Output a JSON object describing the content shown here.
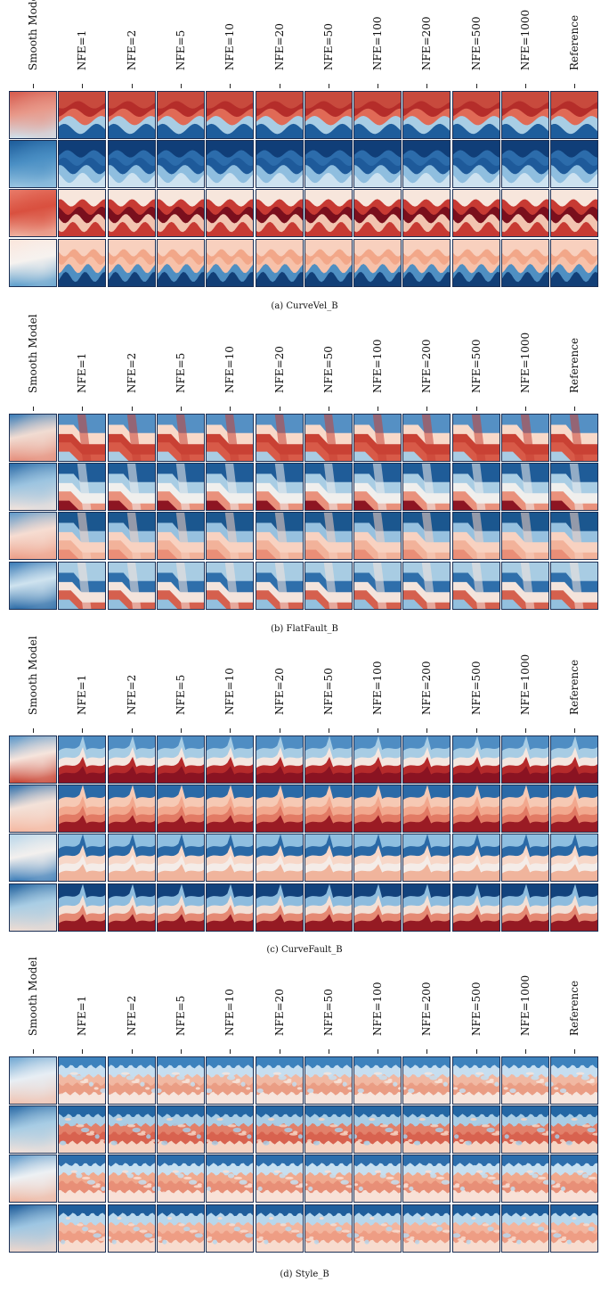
{
  "column_labels": [
    "Smooth Model",
    "NFE=1",
    "NFE=2",
    "NFE=5",
    "NFE=10",
    "NFE=20",
    "NFE=50",
    "NFE=100",
    "NFE=200",
    "NFE=500",
    "NFE=1000",
    "Reference"
  ],
  "panels": [
    {
      "caption": "(a) CurveVel_B",
      "style": "curve",
      "rows": [
        {
          "smooth": [
            "#d65a4d",
            "#e8998a",
            "#cfe3ef"
          ],
          "bands": [
            "#c84a3d",
            "#b52d2a",
            "#e06a56",
            "#a8cde4",
            "#1e5d9c"
          ]
        },
        {
          "smooth": [
            "#1d5c9a",
            "#4a8fc4",
            "#9cc7e2"
          ],
          "bands": [
            "#103e78",
            "#2c6cab",
            "#1e5a9a",
            "#8fbedf",
            "#cde2f0"
          ]
        },
        {
          "smooth": [
            "#e87a68",
            "#d9503f",
            "#f0b4a2"
          ],
          "bands": [
            "#f7e6dc",
            "#c73a33",
            "#7a0f1d",
            "#f2c4b0",
            "#c73a33"
          ]
        },
        {
          "smooth": [
            "#fbe6dc",
            "#f6f2ef",
            "#5a9dcc"
          ],
          "bands": [
            "#f8d0be",
            "#f2a789",
            "#f7c1a9",
            "#4f8fc2",
            "#123f77"
          ]
        }
      ]
    },
    {
      "caption": "(b) FlatFault_B",
      "style": "flat",
      "rows": [
        {
          "smooth": [
            "#3a7db8",
            "#f1dcd2",
            "#e58c79"
          ],
          "bands": [
            "#5590c4",
            "#f8d9c9",
            "#c94134",
            "#d85a48",
            "#a9cce3"
          ]
        },
        {
          "smooth": [
            "#2b6aa6",
            "#9cc4e0",
            "#f5e4dc"
          ],
          "bands": [
            "#1f5c98",
            "#a9cde4",
            "#f0efed",
            "#e9917c",
            "#8d1522"
          ]
        },
        {
          "smooth": [
            "#5e99c9",
            "#f6ddd2",
            "#ec9d86"
          ],
          "bands": [
            "#1b578f",
            "#97c1df",
            "#f8d2c1",
            "#f2b29a",
            "#ea8e77"
          ]
        },
        {
          "smooth": [
            "#3b7cb7",
            "#cfe3ef",
            "#2a6aa6"
          ],
          "bands": [
            "#a8cce3",
            "#2f6fab",
            "#f4e4dc",
            "#d5604e",
            "#93c0de"
          ]
        }
      ]
    },
    {
      "caption": "(c) CurveFault_B",
      "style": "fault",
      "rows": [
        {
          "smooth": [
            "#5a97c9",
            "#f6e5dd",
            "#c8402f"
          ],
          "bands": [
            "#4f8dc3",
            "#a7cce4",
            "#f4e6df",
            "#b52a2b",
            "#8a1322"
          ]
        },
        {
          "smooth": [
            "#2f6fab",
            "#f3e2d9",
            "#f4b7a0"
          ],
          "bands": [
            "#2b6aa7",
            "#f6c9b4",
            "#f2a88e",
            "#e27b65",
            "#9a1b24"
          ]
        },
        {
          "smooth": [
            "#b8d6ea",
            "#f3f0ee",
            "#3a7cb8"
          ],
          "bands": [
            "#8fbfe0",
            "#2a69a6",
            "#f7d7c8",
            "#f4ece8",
            "#f0b49c"
          ]
        },
        {
          "smooth": [
            "#1e5f9c",
            "#a9cde4",
            "#f0dcd2"
          ],
          "bands": [
            "#12427c",
            "#8dbcde",
            "#f2e0d6",
            "#e58a74",
            "#951a23"
          ]
        }
      ]
    },
    {
      "caption": "(d) Style_B",
      "style": "blob",
      "rows": [
        {
          "smooth": [
            "#6fa7d2",
            "#e7eef4",
            "#f0c2b0"
          ],
          "bands": [
            "#3d82bd",
            "#c6def0",
            "#f1b8a2",
            "#ea9d84",
            "#f6e5dd"
          ]
        },
        {
          "smooth": [
            "#2a6aa6",
            "#a7cce4",
            "#f5e2d9"
          ],
          "bands": [
            "#2467a4",
            "#a9cde5",
            "#e2806a",
            "#d8624f",
            "#f6d4c3"
          ]
        },
        {
          "smooth": [
            "#5c97c8",
            "#edf1f4",
            "#efb6a0"
          ],
          "bands": [
            "#2d6eac",
            "#c6dff0",
            "#f0a98e",
            "#e88f77",
            "#f8e1d7"
          ]
        },
        {
          "smooth": [
            "#1c5a98",
            "#9ec6e2",
            "#f1d7cb"
          ],
          "bands": [
            "#1f5e9c",
            "#b8d7ec",
            "#f3b59e",
            "#ee9d84",
            "#f7dccf"
          ]
        }
      ]
    }
  ]
}
